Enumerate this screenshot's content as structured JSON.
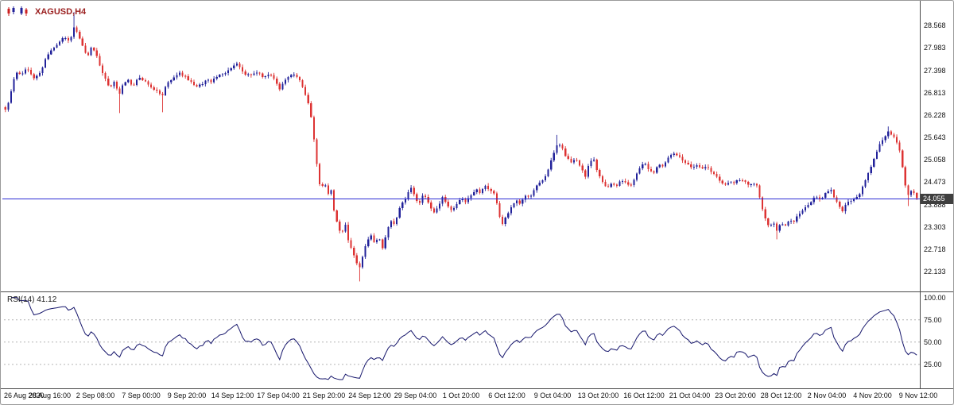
{
  "chart_data": {
    "type": "candlestick",
    "symbol": "XAGUSD",
    "timeframe": "H4",
    "title": "XAGUSD,H4",
    "current_price": 24.055,
    "current_price_label": "24.055",
    "candle_count": 320,
    "ylim": [
      21.66,
      29.09
    ],
    "grid": false,
    "legend": false,
    "price_axis_labels": [
      "28.568",
      "27.983",
      "27.398",
      "26.813",
      "26.228",
      "25.643",
      "25.058",
      "24.473",
      "23.888",
      "23.303",
      "22.718",
      "22.133"
    ],
    "x_labels": [
      "26 Aug 2020",
      "28 Aug 16:00",
      "2 Sep 08:00",
      "7 Sep 00:00",
      "9 Sep 20:00",
      "14 Sep 12:00",
      "17 Sep 04:00",
      "21 Sep 20:00",
      "24 Sep 12:00",
      "29 Sep 04:00",
      "1 Oct 20:00",
      "6 Oct 12:00",
      "9 Oct 04:00",
      "13 Oct 20:00",
      "16 Oct 12:00",
      "21 Oct 04:00",
      "23 Oct 20:00",
      "28 Oct 12:00",
      "2 Nov 04:00",
      "4 Nov 20:00",
      "9 Nov 12:00"
    ],
    "price_waypoints": [
      [
        0.0,
        26.35
      ],
      [
        0.004,
        26.6
      ],
      [
        0.011,
        27.35
      ],
      [
        0.017,
        27.28
      ],
      [
        0.024,
        27.45
      ],
      [
        0.031,
        27.2
      ],
      [
        0.038,
        27.32
      ],
      [
        0.044,
        27.7
      ],
      [
        0.05,
        27.92
      ],
      [
        0.057,
        28.1
      ],
      [
        0.064,
        28.27
      ],
      [
        0.07,
        28.15
      ],
      [
        0.076,
        28.55
      ],
      [
        0.08,
        28.3
      ],
      [
        0.086,
        27.95
      ],
      [
        0.09,
        27.7
      ],
      [
        0.094,
        28.0
      ],
      [
        0.099,
        27.85
      ],
      [
        0.104,
        27.5
      ],
      [
        0.109,
        27.2
      ],
      [
        0.114,
        26.95
      ],
      [
        0.12,
        27.1
      ],
      [
        0.125,
        26.75
      ],
      [
        0.129,
        27.05
      ],
      [
        0.135,
        27.15
      ],
      [
        0.14,
        26.95
      ],
      [
        0.146,
        27.25
      ],
      [
        0.151,
        27.15
      ],
      [
        0.156,
        27.05
      ],
      [
        0.161,
        26.9
      ],
      [
        0.167,
        26.85
      ],
      [
        0.172,
        26.7
      ],
      [
        0.175,
        26.95
      ],
      [
        0.181,
        27.15
      ],
      [
        0.186,
        27.25
      ],
      [
        0.191,
        27.32
      ],
      [
        0.196,
        27.25
      ],
      [
        0.203,
        27.1
      ],
      [
        0.209,
        26.95
      ],
      [
        0.216,
        27.05
      ],
      [
        0.221,
        27.15
      ],
      [
        0.226,
        27.1
      ],
      [
        0.231,
        27.2
      ],
      [
        0.236,
        27.3
      ],
      [
        0.243,
        27.35
      ],
      [
        0.249,
        27.5
      ],
      [
        0.254,
        27.55
      ],
      [
        0.259,
        27.4
      ],
      [
        0.264,
        27.25
      ],
      [
        0.271,
        27.3
      ],
      [
        0.277,
        27.35
      ],
      [
        0.284,
        27.2
      ],
      [
        0.291,
        27.3
      ],
      [
        0.296,
        27.15
      ],
      [
        0.301,
        26.9
      ],
      [
        0.306,
        27.1
      ],
      [
        0.312,
        27.25
      ],
      [
        0.317,
        27.3
      ],
      [
        0.322,
        27.2
      ],
      [
        0.327,
        26.9
      ],
      [
        0.332,
        26.55
      ],
      [
        0.336,
        26.1
      ],
      [
        0.339,
        25.5
      ],
      [
        0.343,
        24.7
      ],
      [
        0.346,
        24.25
      ],
      [
        0.35,
        24.55
      ],
      [
        0.353,
        24.1
      ],
      [
        0.357,
        24.35
      ],
      [
        0.36,
        23.8
      ],
      [
        0.364,
        23.4
      ],
      [
        0.368,
        23.1
      ],
      [
        0.373,
        23.35
      ],
      [
        0.376,
        22.95
      ],
      [
        0.38,
        22.7
      ],
      [
        0.384,
        22.45
      ],
      [
        0.388,
        22.2
      ],
      [
        0.392,
        22.55
      ],
      [
        0.396,
        22.9
      ],
      [
        0.401,
        23.1
      ],
      [
        0.405,
        22.85
      ],
      [
        0.409,
        23.05
      ],
      [
        0.414,
        22.75
      ],
      [
        0.418,
        23.15
      ],
      [
        0.422,
        23.45
      ],
      [
        0.427,
        23.35
      ],
      [
        0.432,
        23.75
      ],
      [
        0.436,
        23.95
      ],
      [
        0.441,
        24.15
      ],
      [
        0.445,
        24.35
      ],
      [
        0.449,
        24.1
      ],
      [
        0.454,
        23.9
      ],
      [
        0.458,
        24.15
      ],
      [
        0.463,
        24.0
      ],
      [
        0.467,
        23.8
      ],
      [
        0.471,
        23.65
      ],
      [
        0.476,
        23.9
      ],
      [
        0.48,
        24.1
      ],
      [
        0.484,
        23.9
      ],
      [
        0.49,
        23.7
      ],
      [
        0.495,
        23.9
      ],
      [
        0.5,
        24.05
      ],
      [
        0.505,
        23.95
      ],
      [
        0.51,
        24.1
      ],
      [
        0.516,
        24.3
      ],
      [
        0.521,
        24.2
      ],
      [
        0.526,
        24.4
      ],
      [
        0.531,
        24.25
      ],
      [
        0.537,
        24.15
      ],
      [
        0.541,
        23.7
      ],
      [
        0.545,
        23.35
      ],
      [
        0.55,
        23.6
      ],
      [
        0.555,
        23.85
      ],
      [
        0.56,
        24.0
      ],
      [
        0.565,
        23.9
      ],
      [
        0.571,
        24.15
      ],
      [
        0.576,
        24.1
      ],
      [
        0.581,
        24.3
      ],
      [
        0.586,
        24.45
      ],
      [
        0.592,
        24.6
      ],
      [
        0.597,
        24.9
      ],
      [
        0.602,
        25.25
      ],
      [
        0.606,
        25.5
      ],
      [
        0.611,
        25.35
      ],
      [
        0.616,
        25.1
      ],
      [
        0.621,
        25.0
      ],
      [
        0.626,
        25.1
      ],
      [
        0.632,
        24.85
      ],
      [
        0.636,
        24.6
      ],
      [
        0.64,
        24.95
      ],
      [
        0.645,
        25.15
      ],
      [
        0.649,
        24.8
      ],
      [
        0.654,
        24.5
      ],
      [
        0.66,
        24.3
      ],
      [
        0.665,
        24.45
      ],
      [
        0.67,
        24.35
      ],
      [
        0.675,
        24.55
      ],
      [
        0.681,
        24.45
      ],
      [
        0.686,
        24.4
      ],
      [
        0.691,
        24.6
      ],
      [
        0.696,
        24.85
      ],
      [
        0.701,
        25.0
      ],
      [
        0.706,
        24.8
      ],
      [
        0.711,
        24.7
      ],
      [
        0.716,
        24.95
      ],
      [
        0.722,
        24.9
      ],
      [
        0.727,
        25.1
      ],
      [
        0.732,
        25.25
      ],
      [
        0.737,
        25.2
      ],
      [
        0.743,
        25.05
      ],
      [
        0.748,
        24.95
      ],
      [
        0.753,
        24.85
      ],
      [
        0.758,
        24.9
      ],
      [
        0.764,
        24.85
      ],
      [
        0.769,
        24.9
      ],
      [
        0.774,
        24.75
      ],
      [
        0.779,
        24.65
      ],
      [
        0.784,
        24.5
      ],
      [
        0.79,
        24.4
      ],
      [
        0.795,
        24.5
      ],
      [
        0.8,
        24.45
      ],
      [
        0.805,
        24.55
      ],
      [
        0.811,
        24.5
      ],
      [
        0.816,
        24.4
      ],
      [
        0.821,
        24.45
      ],
      [
        0.825,
        24.35
      ],
      [
        0.829,
        23.95
      ],
      [
        0.833,
        23.55
      ],
      [
        0.838,
        23.3
      ],
      [
        0.842,
        23.45
      ],
      [
        0.846,
        23.2
      ],
      [
        0.851,
        23.4
      ],
      [
        0.855,
        23.3
      ],
      [
        0.86,
        23.5
      ],
      [
        0.864,
        23.4
      ],
      [
        0.868,
        23.6
      ],
      [
        0.873,
        23.7
      ],
      [
        0.879,
        23.85
      ],
      [
        0.884,
        23.95
      ],
      [
        0.889,
        24.1
      ],
      [
        0.894,
        24.0
      ],
      [
        0.9,
        24.2
      ],
      [
        0.905,
        24.3
      ],
      [
        0.909,
        24.1
      ],
      [
        0.914,
        23.9
      ],
      [
        0.918,
        23.7
      ],
      [
        0.922,
        23.9
      ],
      [
        0.928,
        24.0
      ],
      [
        0.933,
        24.05
      ],
      [
        0.938,
        24.2
      ],
      [
        0.943,
        24.5
      ],
      [
        0.949,
        24.85
      ],
      [
        0.954,
        25.15
      ],
      [
        0.959,
        25.45
      ],
      [
        0.964,
        25.6
      ],
      [
        0.969,
        25.8
      ],
      [
        0.973,
        25.7
      ],
      [
        0.977,
        25.6
      ],
      [
        0.982,
        25.25
      ],
      [
        0.986,
        24.6
      ],
      [
        0.99,
        24.1
      ],
      [
        0.995,
        24.3
      ],
      [
        1.0,
        24.055
      ]
    ],
    "spikes": [
      [
        0.076,
        "high",
        28.92
      ],
      [
        0.125,
        "low",
        26.28
      ],
      [
        0.172,
        "low",
        26.3
      ],
      [
        0.388,
        "low",
        21.88
      ],
      [
        0.606,
        "high",
        25.71
      ],
      [
        0.846,
        "low",
        22.98
      ],
      [
        0.969,
        "high",
        25.93
      ],
      [
        0.99,
        "low",
        23.85
      ]
    ],
    "rsi": {
      "label": "RSI(14) 41.12",
      "period": 14,
      "current_value": 41.12,
      "levels": [
        75,
        50,
        25
      ],
      "axis_labels": [
        "100.00",
        "75.00",
        "50.00",
        "25.00"
      ],
      "axis_values": [
        100,
        75,
        50,
        25
      ],
      "ylim": [
        0,
        105
      ]
    },
    "colors": {
      "bull": "#22229a",
      "bear": "#dd3333",
      "price_line": "#2b2bd4",
      "rsi_line": "#15156b",
      "level_line": "#b4b4b4",
      "separator": "#4a4a4a",
      "axis_text": "#111111",
      "title_text": "#9b2020",
      "tag_bg": "#3f3f3f",
      "tag_text": "#ffffff",
      "background": "#ffffff"
    }
  }
}
